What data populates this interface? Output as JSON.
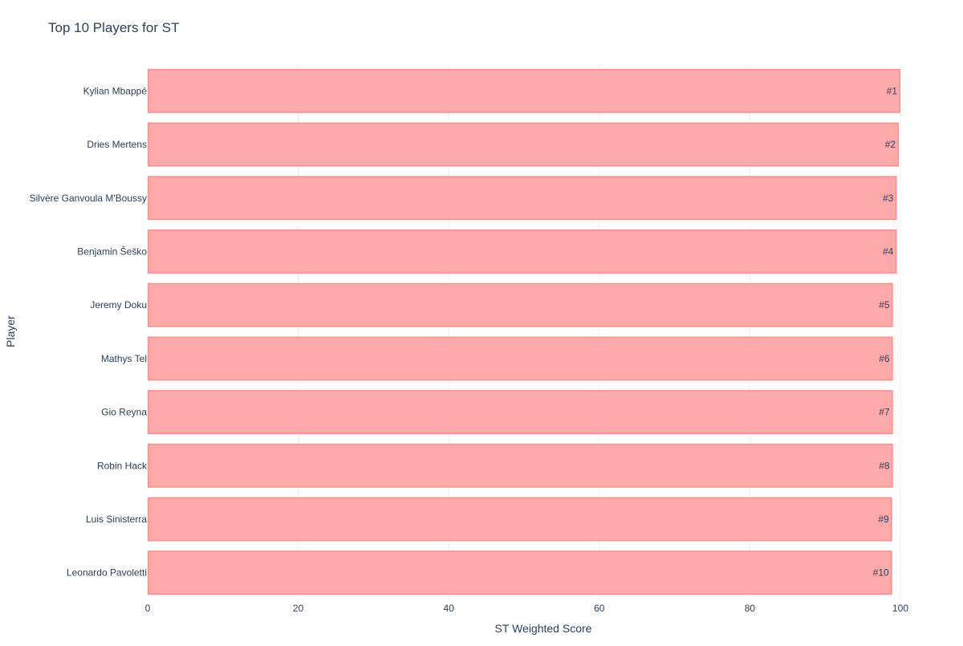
{
  "chart_data": {
    "type": "bar",
    "orientation": "horizontal",
    "title": "Top 10 Players for ST",
    "xlabel": "ST Weighted Score",
    "ylabel": "Player",
    "xlim": [
      0,
      100
    ],
    "xticks": [
      0,
      20,
      40,
      60,
      80,
      100
    ],
    "categories": [
      "Kylian Mbappé",
      "Dries Mertens",
      "Silvère Ganvoula M'Boussy",
      "Benjamin Šeško",
      "Jeremy Doku",
      "Mathys Tel",
      "Gio Reyna",
      "Robin Hack",
      "Luis Sinisterra",
      "Leonardo Pavoletti"
    ],
    "values": [
      100,
      99.8,
      99.5,
      99.5,
      99.0,
      99.0,
      99.0,
      99.0,
      98.9,
      98.9
    ],
    "text_labels": [
      "#1",
      "#2",
      "#3",
      "#4",
      "#5",
      "#6",
      "#7",
      "#8",
      "#9",
      "#10"
    ],
    "grid": true,
    "bar_color": "#ffaaaa",
    "bar_outline": "#ff8e8e",
    "text_color": "#2a3f5f",
    "grid_color": "#ebf0f8"
  }
}
